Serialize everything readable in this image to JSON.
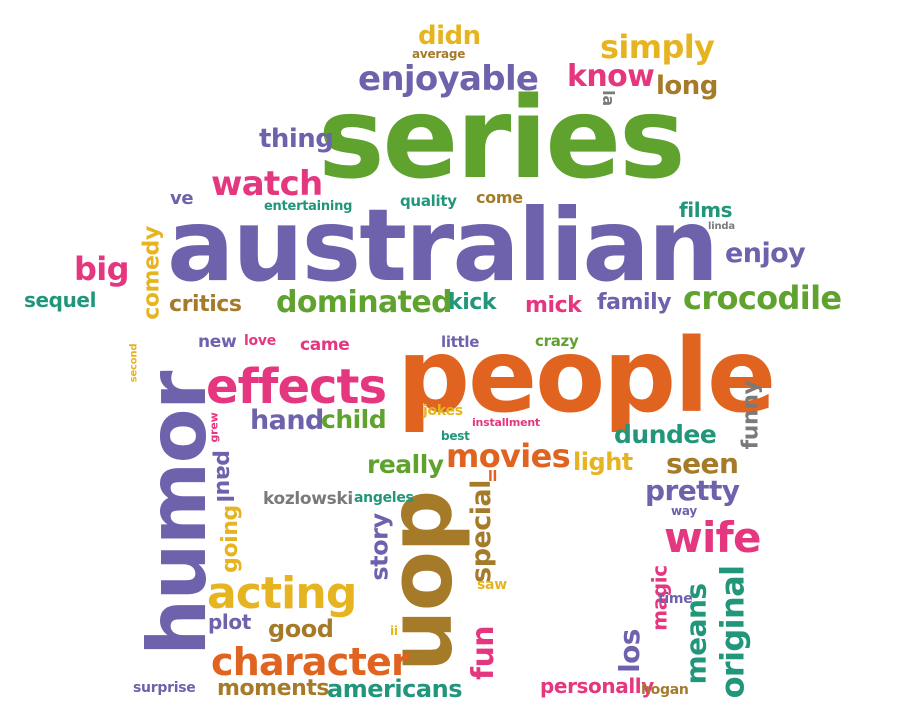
{
  "palette": {
    "purple": "#6f62ad",
    "green": "#5fa22e",
    "orange": "#e0641f",
    "magenta": "#e5377f",
    "teal": "#21967b",
    "brown": "#a57b2a",
    "yellow": "#e7b421",
    "gray": "#7a7a7a"
  },
  "words": [
    {
      "text": "series",
      "color": "green"
    },
    {
      "text": "australian",
      "color": "purple"
    },
    {
      "text": "people",
      "color": "orange"
    },
    {
      "text": "humor",
      "color": "purple"
    },
    {
      "text": "don",
      "color": "brown"
    },
    {
      "text": "effects",
      "color": "magenta"
    },
    {
      "text": "enjoyable",
      "color": "purple"
    },
    {
      "text": "watch",
      "color": "magenta"
    },
    {
      "text": "simply",
      "color": "yellow"
    },
    {
      "text": "know",
      "color": "magenta"
    },
    {
      "text": "didn",
      "color": "yellow"
    },
    {
      "text": "average",
      "color": "brown"
    },
    {
      "text": "long",
      "color": "brown"
    },
    {
      "text": "la",
      "color": "gray"
    },
    {
      "text": "thing",
      "color": "purple"
    },
    {
      "text": "ve",
      "color": "purple"
    },
    {
      "text": "entertaining",
      "color": "teal"
    },
    {
      "text": "quality",
      "color": "teal"
    },
    {
      "text": "come",
      "color": "brown"
    },
    {
      "text": "films",
      "color": "teal"
    },
    {
      "text": "linda",
      "color": "gray"
    },
    {
      "text": "enjoy",
      "color": "purple"
    },
    {
      "text": "big",
      "color": "magenta"
    },
    {
      "text": "comedy",
      "color": "yellow"
    },
    {
      "text": "sequel",
      "color": "teal"
    },
    {
      "text": "critics",
      "color": "brown"
    },
    {
      "text": "dominated",
      "color": "green"
    },
    {
      "text": "kick",
      "color": "teal"
    },
    {
      "text": "mick",
      "color": "magenta"
    },
    {
      "text": "family",
      "color": "purple"
    },
    {
      "text": "crocodile",
      "color": "green"
    },
    {
      "text": "second",
      "color": "yellow"
    },
    {
      "text": "new",
      "color": "purple"
    },
    {
      "text": "love",
      "color": "magenta"
    },
    {
      "text": "came",
      "color": "magenta"
    },
    {
      "text": "little",
      "color": "purple"
    },
    {
      "text": "crazy",
      "color": "green"
    },
    {
      "text": "funny",
      "color": "gray"
    },
    {
      "text": "hand",
      "color": "purple"
    },
    {
      "text": "child",
      "color": "green"
    },
    {
      "text": "jokes",
      "color": "yellow"
    },
    {
      "text": "installment",
      "color": "magenta"
    },
    {
      "text": "best",
      "color": "teal"
    },
    {
      "text": "dundee",
      "color": "teal"
    },
    {
      "text": "grew",
      "color": "magenta"
    },
    {
      "text": "paul",
      "color": "purple"
    },
    {
      "text": "really",
      "color": "green"
    },
    {
      "text": "movies",
      "color": "orange"
    },
    {
      "text": "light",
      "color": "yellow"
    },
    {
      "text": "seen",
      "color": "brown"
    },
    {
      "text": "ll",
      "color": "orange"
    },
    {
      "text": "pretty",
      "color": "purple"
    },
    {
      "text": "kozlowski",
      "color": "gray"
    },
    {
      "text": "angeles",
      "color": "teal"
    },
    {
      "text": "way",
      "color": "purple"
    },
    {
      "text": "going",
      "color": "yellow"
    },
    {
      "text": "story",
      "color": "purple"
    },
    {
      "text": "special",
      "color": "brown"
    },
    {
      "text": "wife",
      "color": "magenta"
    },
    {
      "text": "acting",
      "color": "yellow"
    },
    {
      "text": "saw",
      "color": "yellow"
    },
    {
      "text": "magic",
      "color": "magenta"
    },
    {
      "text": "time",
      "color": "purple"
    },
    {
      "text": "means",
      "color": "teal"
    },
    {
      "text": "original",
      "color": "teal"
    },
    {
      "text": "los",
      "color": "purple"
    },
    {
      "text": "plot",
      "color": "purple"
    },
    {
      "text": "good",
      "color": "brown"
    },
    {
      "text": "ii",
      "color": "yellow"
    },
    {
      "text": "fun",
      "color": "magenta"
    },
    {
      "text": "character",
      "color": "orange"
    },
    {
      "text": "moments",
      "color": "brown"
    },
    {
      "text": "americans",
      "color": "teal"
    },
    {
      "text": "surprise",
      "color": "purple"
    },
    {
      "text": "personally",
      "color": "magenta"
    },
    {
      "text": "hogan",
      "color": "brown"
    }
  ]
}
